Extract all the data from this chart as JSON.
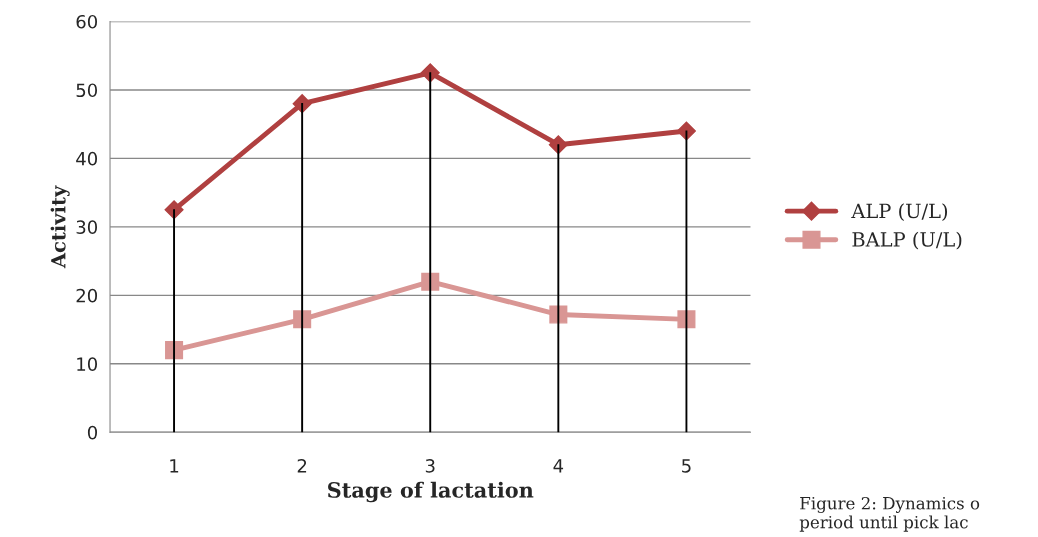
{
  "chart_data": {
    "type": "line",
    "xlabel": "Stage of lactation",
    "ylabel": "Activity",
    "categories": [
      "1",
      "2",
      "3",
      "4",
      "5"
    ],
    "series": [
      {
        "type": "bar",
        "color": "#000000",
        "values": [
          32.5,
          48,
          52.5,
          42,
          44
        ]
      },
      {
        "name": "ALP (U/L)",
        "color": "#b04040",
        "marker": "diamond",
        "values": [
          32.5,
          48,
          52.5,
          42,
          44
        ]
      },
      {
        "name": "BALP (U/L)",
        "color": "#d99694",
        "marker": "square",
        "values": [
          12,
          16.5,
          22,
          17.2,
          16.5
        ]
      }
    ],
    "ylim": [
      0,
      60
    ],
    "yticks": [
      0,
      10,
      20,
      30,
      40,
      50,
      60
    ],
    "grid": "y",
    "legend": "right",
    "annotations": [
      "Figure 2: Dynamics o\nperiod until pick lac"
    ]
  }
}
